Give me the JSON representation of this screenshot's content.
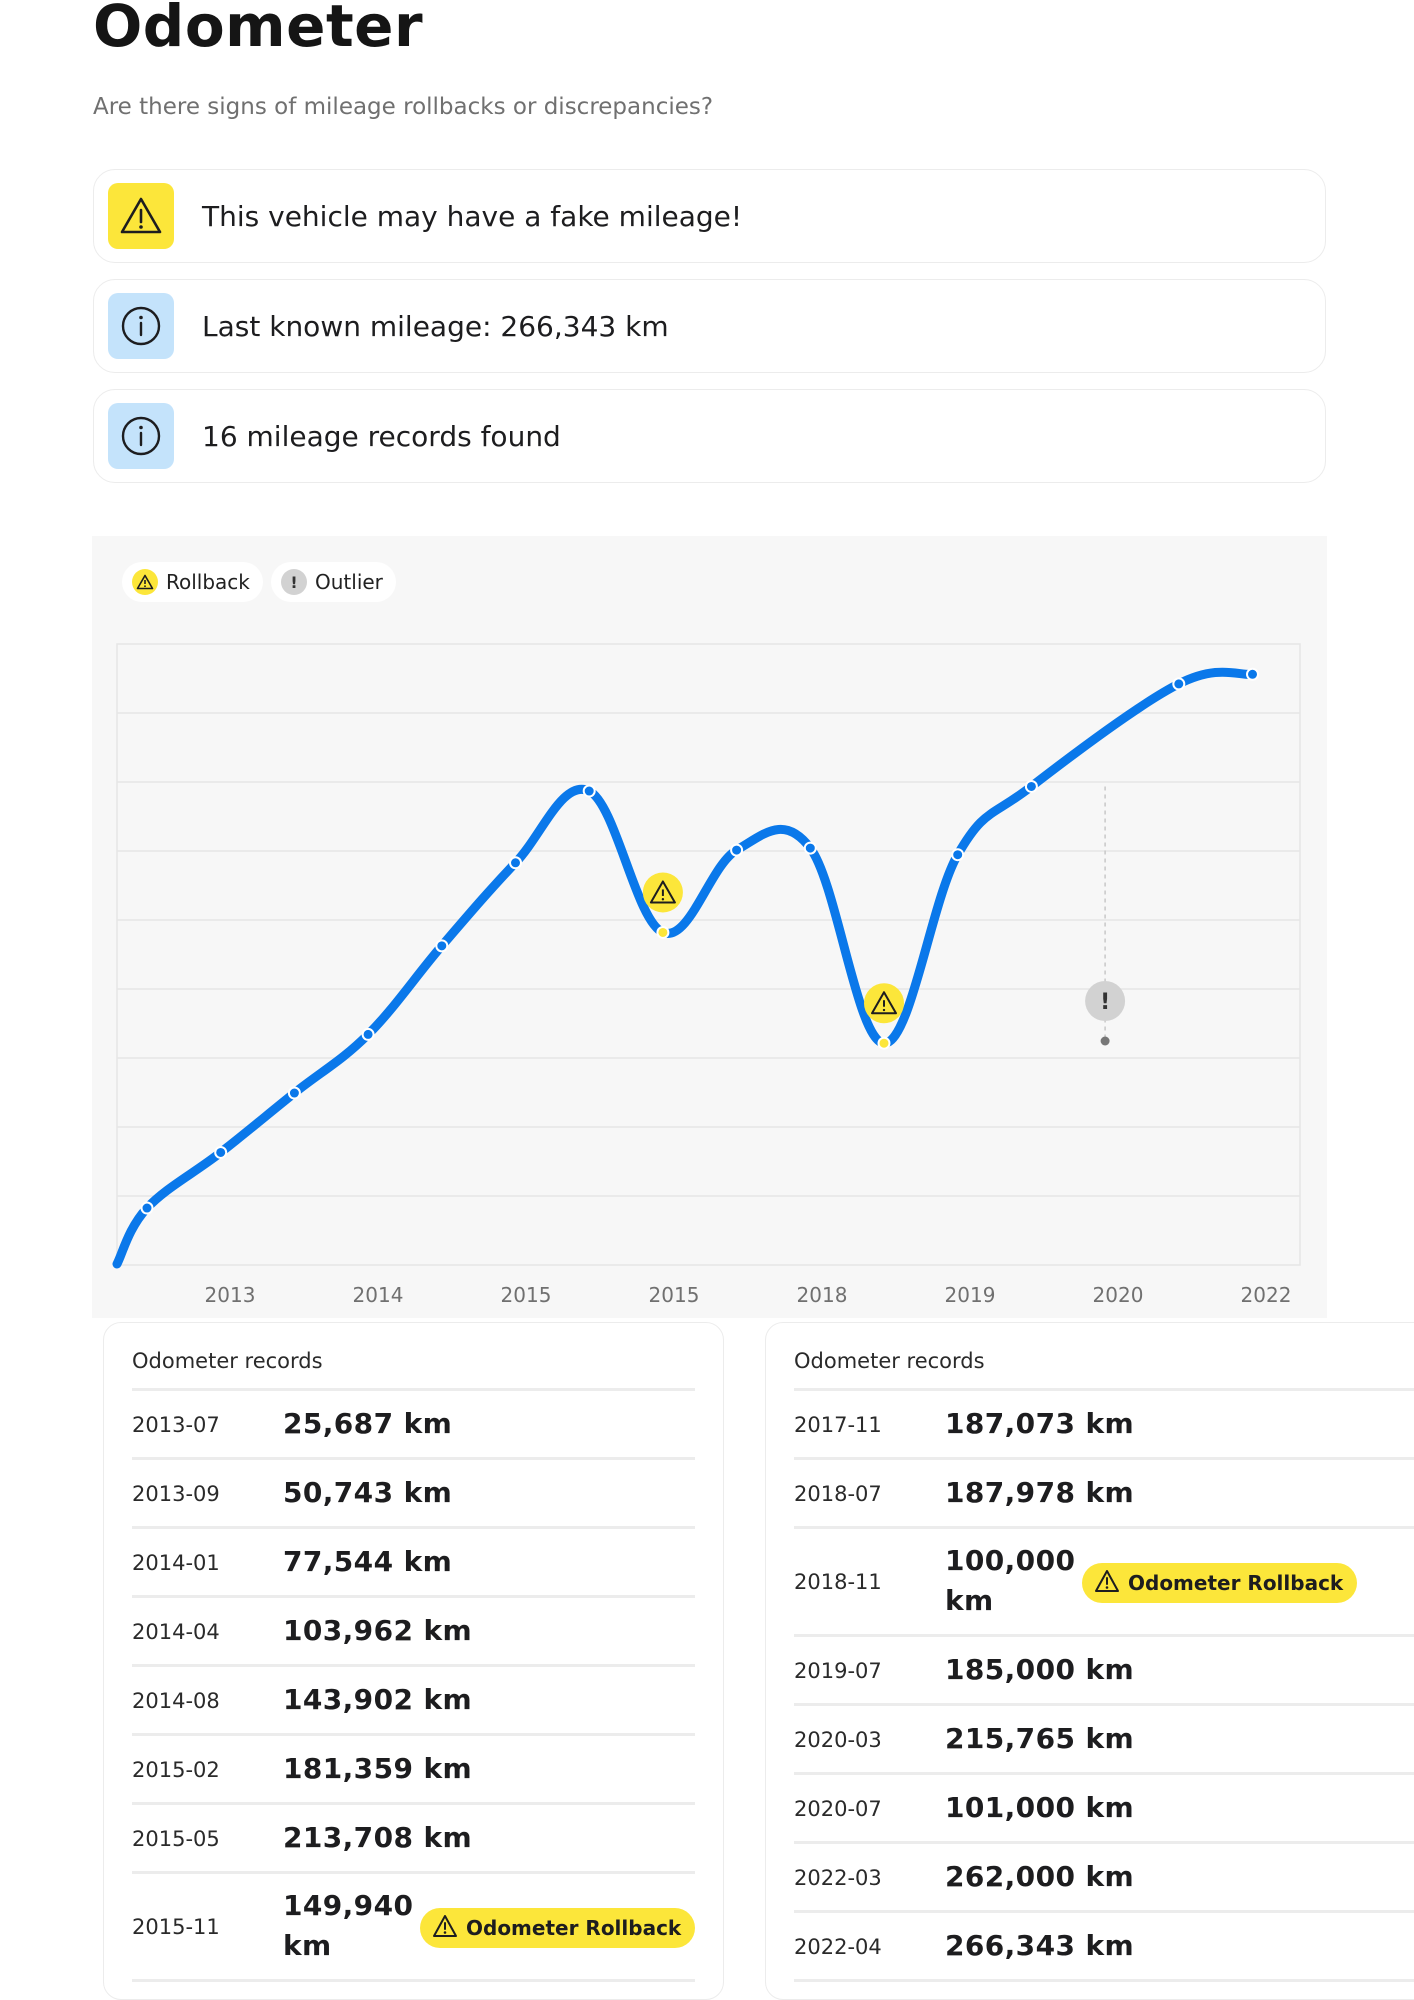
{
  "header": {
    "title": "Odometer",
    "subtitle": "Are there signs of mileage rollbacks or discrepancies?"
  },
  "alerts": [
    {
      "type": "warning",
      "icon": "warning-triangle-icon",
      "text": "This vehicle may have a fake mileage!"
    },
    {
      "type": "info",
      "icon": "info-circle-icon",
      "text": "Last known mileage: 266,343 km"
    },
    {
      "type": "info",
      "icon": "info-circle-icon",
      "text": "16 mileage records found"
    }
  ],
  "colors": {
    "accent": "#0a78ea",
    "warning": "#fce63a",
    "info": "#c4e3fb",
    "outlier": "#d2d2d2"
  },
  "legend": [
    {
      "label": "Rollback",
      "icon": "warning-triangle-icon"
    },
    {
      "label": "Outlier",
      "icon": "exclamation-icon"
    }
  ],
  "chart_data": {
    "type": "line",
    "title": "",
    "xlabel": "",
    "ylabel": "",
    "x_tick_labels": [
      "2013",
      "2014",
      "2015",
      "2015",
      "2018",
      "2019",
      "2020",
      "2022"
    ],
    "ylim": [
      0,
      280000
    ],
    "grid": true,
    "legend_position": "top-left",
    "series": [
      {
        "points": [
          {
            "date": "2013-07",
            "km": 25687
          },
          {
            "date": "2013-09",
            "km": 50743
          },
          {
            "date": "2014-01",
            "km": 77544
          },
          {
            "date": "2014-04",
            "km": 103962
          },
          {
            "date": "2014-08",
            "km": 143902
          },
          {
            "date": "2015-02",
            "km": 181359
          },
          {
            "date": "2015-05",
            "km": 213708
          },
          {
            "date": "2015-11",
            "km": 149940,
            "flag": "rollback"
          },
          {
            "date": "2017-11",
            "km": 187073
          },
          {
            "date": "2018-07",
            "km": 187978
          },
          {
            "date": "2018-11",
            "km": 100000,
            "flag": "rollback"
          },
          {
            "date": "2019-07",
            "km": 185000
          },
          {
            "date": "2020-03",
            "km": 215765
          },
          {
            "date": "2020-07",
            "km": 101000,
            "flag": "outlier"
          },
          {
            "date": "2022-03",
            "km": 262000
          },
          {
            "date": "2022-04",
            "km": 266343
          }
        ]
      }
    ]
  },
  "records": {
    "left_title": "Odometer records",
    "right_title": "Odometer records",
    "badge_label": "Odometer Rollback",
    "left": [
      {
        "date": "2013-07",
        "km": "25,687 km"
      },
      {
        "date": "2013-09",
        "km": "50,743 km"
      },
      {
        "date": "2014-01",
        "km": "77,544 km"
      },
      {
        "date": "2014-04",
        "km": "103,962 km"
      },
      {
        "date": "2014-08",
        "km": "143,902 km"
      },
      {
        "date": "2015-02",
        "km": "181,359 km"
      },
      {
        "date": "2015-05",
        "km": "213,708 km"
      },
      {
        "date": "2015-11",
        "km": "149,940 km",
        "rollback": true
      }
    ],
    "right": [
      {
        "date": "2017-11",
        "km": "187,073 km"
      },
      {
        "date": "2018-07",
        "km": "187,978 km"
      },
      {
        "date": "2018-11",
        "km": "100,000 km",
        "rollback": true
      },
      {
        "date": "2019-07",
        "km": "185,000 km"
      },
      {
        "date": "2020-03",
        "km": "215,765 km"
      },
      {
        "date": "2020-07",
        "km": "101,000 km"
      },
      {
        "date": "2022-03",
        "km": "262,000 km"
      },
      {
        "date": "2022-04",
        "km": "266,343 km"
      }
    ]
  }
}
